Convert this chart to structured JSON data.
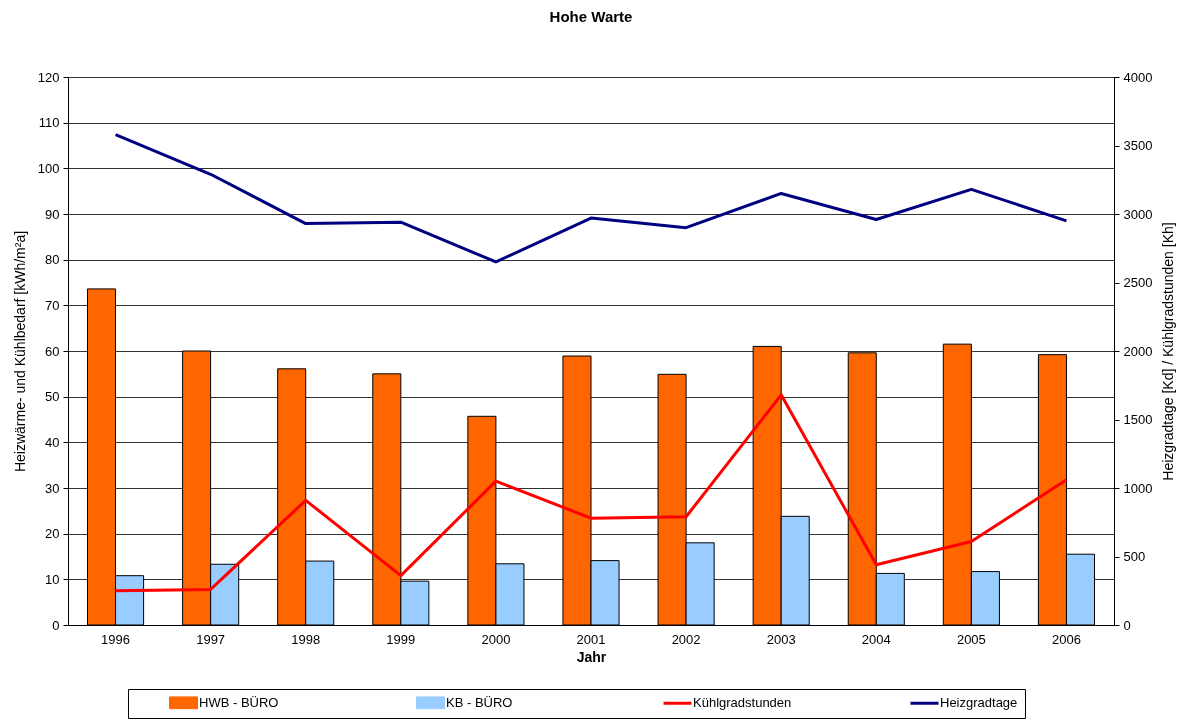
{
  "chart_data": {
    "type": "bar",
    "title": "Hohe Warte",
    "xlabel": "Jahr",
    "ylabel": "Heizwärme- und Kühlbedarf [kWh/m²a]",
    "y2label": "Heizgradtage [Kd] / Kühlgradstunden [Kh]",
    "categories": [
      "1996",
      "1997",
      "1998",
      "1999",
      "2000",
      "2001",
      "2002",
      "2003",
      "2004",
      "2005",
      "2006"
    ],
    "series": [
      {
        "name": "HWB - BÜRO",
        "color": "#ff6600",
        "values": [
          73.6,
          60.0,
          56.1,
          55.0,
          45.7,
          58.9,
          54.9,
          61.0,
          59.6,
          61.5,
          59.2
        ]
      },
      {
        "name": "KB - BÜRO",
        "color": "#99ccff",
        "values": [
          10.8,
          13.3,
          14.0,
          9.6,
          13.4,
          14.1,
          18.0,
          23.8,
          11.3,
          11.7,
          15.5
        ]
      },
      {
        "name": "Kühlgradstunden",
        "type": "line",
        "axis": "y2",
        "color": "#ff0000",
        "values": [
          250,
          260,
          910,
          360,
          1050,
          780,
          790,
          1680,
          440,
          610,
          1060
        ]
      },
      {
        "name": "Heizgradtage",
        "type": "line",
        "axis": "y2",
        "color": "#000080",
        "values": [
          3580,
          3290,
          2930,
          2940,
          2650,
          2970,
          2900,
          3150,
          2960,
          3180,
          2950
        ]
      }
    ],
    "ylim": [
      0,
      120
    ],
    "yticks": [
      0,
      10,
      20,
      30,
      40,
      50,
      60,
      70,
      80,
      90,
      100,
      110,
      120
    ],
    "y2lim": [
      0,
      4000
    ],
    "y2ticks": [
      0,
      500,
      1000,
      1500,
      2000,
      2500,
      3000,
      3500,
      4000
    ],
    "grid": "y",
    "legend": "bottom",
    "marker": "none",
    "line_style": "solid"
  }
}
